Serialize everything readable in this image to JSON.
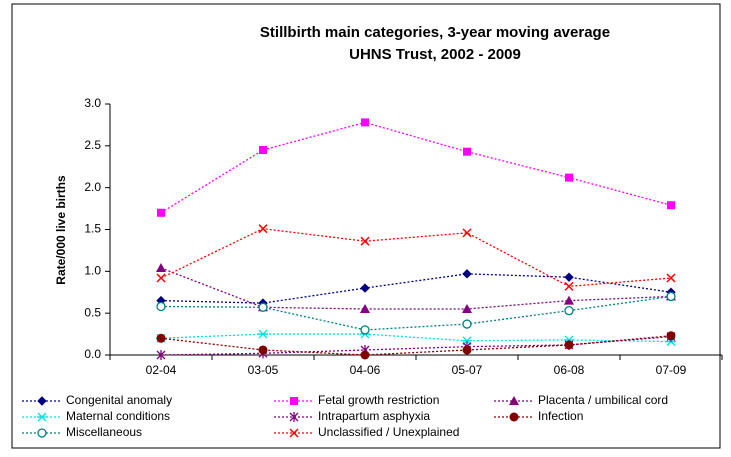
{
  "chart_data": {
    "type": "line",
    "title": "Stillbirth main categories, 3-year moving average",
    "subtitle": "UHNS Trust, 2002 - 2009",
    "y_label": "Rate/000 live births",
    "categories": [
      "02-04",
      "03-05",
      "04-06",
      "05-07",
      "06-08",
      "07-09"
    ],
    "ylim": [
      0,
      3
    ],
    "yticks": [
      {
        "value": 0,
        "label": "0.0"
      },
      {
        "value": 0.5,
        "label": "0.5"
      },
      {
        "value": 1,
        "label": "1.0"
      },
      {
        "value": 1.5,
        "label": "1.5"
      },
      {
        "value": 2,
        "label": "2.0"
      },
      {
        "value": 2.5,
        "label": "2.5"
      },
      {
        "value": 3,
        "label": "3.0"
      }
    ],
    "grid": false,
    "legend": "bottom",
    "series": [
      {
        "name": "Congenital anomaly",
        "color": "#000080",
        "marker": "diamond",
        "values": [
          0.65,
          0.62,
          0.8,
          0.97,
          0.93,
          0.75
        ]
      },
      {
        "name": "Fetal growth restriction",
        "color": "#ff00ff",
        "marker": "square",
        "values": [
          1.7,
          2.45,
          2.78,
          2.43,
          2.12,
          1.79
        ]
      },
      {
        "name": "Placenta / umbilical cord",
        "color": "#800080",
        "marker": "triangle",
        "values": [
          1.04,
          0.57,
          0.55,
          0.55,
          0.65,
          0.7
        ]
      },
      {
        "name": "Maternal conditions",
        "color": "#00e0e0",
        "marker": "asterisk",
        "values": [
          0.2,
          0.25,
          0.25,
          0.17,
          0.18,
          0.16
        ]
      },
      {
        "name": "Intrapartum asphyxia",
        "color": "#800080",
        "marker": "star",
        "values": [
          0.0,
          0.02,
          0.06,
          0.1,
          0.12,
          0.22
        ]
      },
      {
        "name": "Infection",
        "color": "#800000",
        "marker": "circle",
        "values": [
          0.2,
          0.06,
          0.0,
          0.06,
          0.12,
          0.23
        ]
      },
      {
        "name": "Miscellaneous",
        "color": "#008080",
        "marker": "open-circle",
        "values": [
          0.58,
          0.57,
          0.3,
          0.37,
          0.53,
          0.7
        ]
      },
      {
        "name": "Unclassified / Unexplained",
        "color": "#ff0000",
        "marker": "x",
        "values": [
          0.92,
          1.51,
          1.36,
          1.46,
          0.82,
          0.92
        ]
      }
    ]
  }
}
